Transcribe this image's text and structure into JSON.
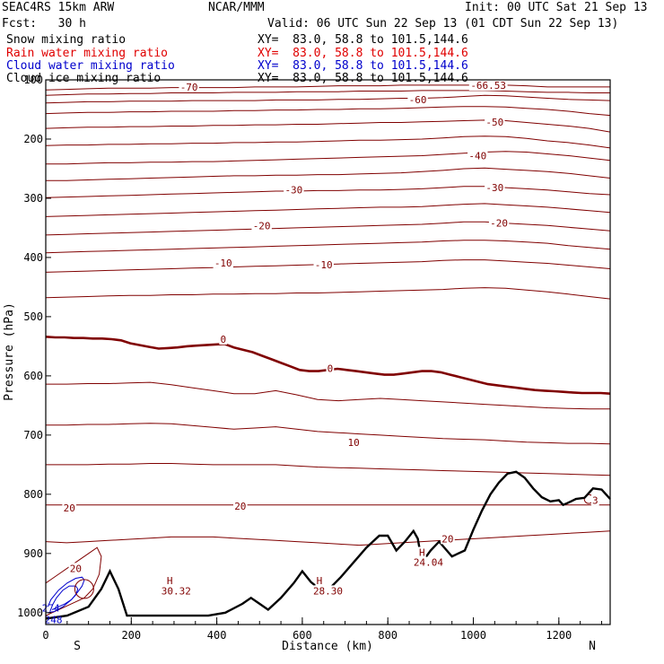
{
  "header": {
    "model": "SEAC4RS 15km ARW",
    "center": "NCAR/MMM",
    "init": "Init: 00 UTC Sat 21 Sep 13",
    "fcst": "Fcst:   30 h",
    "valid": "Valid: 06 UTC Sun 22 Sep 13 (01 CDT Sun 22 Sep 13)",
    "fields": [
      {
        "name": "Snow mixing ratio",
        "xy": "XY=  83.0, 58.8 to 101.5,144.6",
        "color": "#000000"
      },
      {
        "name": "Rain water mixing ratio",
        "xy": "XY=  83.0, 58.8 to 101.5,144.6",
        "color": "#e00000"
      },
      {
        "name": "Cloud water mixing ratio",
        "xy": "XY=  83.0, 58.8 to 101.5,144.6",
        "color": "#0000cc"
      },
      {
        "name": "Cloud ice mixing ratio",
        "xy": "XY=  83.0, 58.8 to 101.5,144.6",
        "color": "#000000"
      }
    ]
  },
  "chart_data": {
    "type": "line",
    "xlabel": "Distance (km)",
    "ylabel": "Pressure (hPa)",
    "xlim": [
      0,
      1320
    ],
    "ylim": [
      1020,
      100
    ],
    "y_scale": "linear, inverted",
    "x_ticks": [
      0,
      200,
      400,
      600,
      800,
      1000,
      1200
    ],
    "y_ticks": [
      200,
      300,
      400,
      500,
      600,
      700,
      800,
      900,
      1000
    ],
    "y_top_tick": "100",
    "x_end_labels": {
      "left": "S",
      "right": "N"
    },
    "contour_color": "#800000",
    "terrain_color": "#000000",
    "cloud_color": "#0000cc",
    "isotherms": [
      {
        "level": -70,
        "p": [
          117,
          116,
          115,
          114,
          114,
          114,
          113,
          113,
          113,
          113,
          112,
          112,
          112,
          111,
          110,
          110,
          110,
          109,
          109,
          109,
          109,
          109,
          109,
          110,
          112,
          112,
          112,
          112
        ]
      },
      {
        "level": -65,
        "p": [
          126,
          125,
          124,
          124,
          123,
          123,
          122,
          122,
          122,
          121,
          121,
          121,
          120,
          120,
          120,
          119,
          119,
          119,
          118,
          118,
          118,
          118,
          119,
          120,
          121,
          121,
          122,
          122
        ]
      },
      {
        "level": -60,
        "p": [
          139,
          138,
          137,
          137,
          136,
          136,
          136,
          135,
          135,
          135,
          135,
          134,
          134,
          134,
          133,
          133,
          132,
          131,
          131,
          130,
          128,
          126,
          127,
          129,
          131,
          133,
          134,
          135
        ]
      },
      {
        "level": -55,
        "p": [
          157,
          156,
          155,
          155,
          154,
          154,
          153,
          153,
          153,
          152,
          152,
          151,
          151,
          150,
          150,
          149,
          149,
          148,
          147,
          146,
          145,
          145,
          146,
          148,
          150,
          153,
          157,
          160
        ]
      },
      {
        "level": -50,
        "p": [
          182,
          181,
          180,
          180,
          179,
          179,
          178,
          178,
          177,
          177,
          176,
          176,
          175,
          175,
          174,
          173,
          172,
          172,
          171,
          170,
          169,
          168,
          169,
          172,
          175,
          178,
          182,
          188
        ]
      },
      {
        "level": -45,
        "p": [
          211,
          210,
          210,
          209,
          209,
          208,
          208,
          207,
          207,
          206,
          206,
          205,
          205,
          204,
          203,
          202,
          202,
          201,
          200,
          198,
          196,
          195,
          196,
          199,
          203,
          206,
          210,
          215
        ]
      },
      {
        "level": -40,
        "p": [
          242,
          242,
          241,
          240,
          240,
          239,
          239,
          238,
          238,
          237,
          236,
          235,
          234,
          233,
          232,
          231,
          230,
          229,
          228,
          226,
          224,
          222,
          221,
          222,
          225,
          228,
          232,
          236
        ]
      },
      {
        "level": -35,
        "p": [
          270,
          270,
          269,
          268,
          267,
          266,
          265,
          264,
          263,
          262,
          262,
          261,
          261,
          260,
          260,
          259,
          258,
          257,
          255,
          253,
          250,
          249,
          251,
          253,
          255,
          258,
          262,
          266
        ]
      },
      {
        "level": -30,
        "p": [
          299,
          298,
          297,
          296,
          295,
          294,
          293,
          292,
          291,
          290,
          289,
          288,
          288,
          287,
          287,
          286,
          286,
          285,
          284,
          282,
          280,
          280,
          282,
          284,
          286,
          289,
          292,
          294
        ]
      },
      {
        "level": -25,
        "p": [
          331,
          330,
          329,
          328,
          327,
          326,
          325,
          324,
          323,
          322,
          321,
          320,
          319,
          318,
          317,
          316,
          315,
          315,
          314,
          312,
          310,
          309,
          311,
          313,
          315,
          318,
          321,
          324
        ]
      },
      {
        "level": -20,
        "p": [
          362,
          361,
          360,
          359,
          358,
          357,
          356,
          355,
          354,
          353,
          352,
          351,
          350,
          349,
          348,
          347,
          346,
          345,
          344,
          342,
          340,
          340,
          342,
          344,
          346,
          349,
          352,
          355
        ]
      },
      {
        "level": -15,
        "p": [
          392,
          391,
          390,
          389,
          388,
          387,
          386,
          385,
          384,
          383,
          382,
          381,
          380,
          379,
          378,
          377,
          376,
          375,
          374,
          372,
          371,
          371,
          372,
          374,
          376,
          380,
          383,
          386
        ]
      },
      {
        "level": -10,
        "p": [
          425,
          424,
          423,
          422,
          421,
          420,
          419,
          418,
          417,
          416,
          415,
          414,
          413,
          412,
          411,
          410,
          409,
          408,
          407,
          405,
          404,
          404,
          406,
          408,
          410,
          413,
          416,
          419
        ]
      },
      {
        "level": -5,
        "p": [
          468,
          467,
          466,
          465,
          464,
          464,
          463,
          463,
          462,
          462,
          461,
          461,
          460,
          460,
          459,
          458,
          457,
          456,
          455,
          454,
          452,
          451,
          452,
          455,
          458,
          462,
          466,
          470
        ]
      },
      {
        "level": 5,
        "p": [
          614,
          614,
          613,
          613,
          612,
          611,
          615,
          620,
          625,
          630,
          630,
          625,
          632,
          640,
          642,
          640,
          638,
          640,
          642,
          644,
          646,
          648,
          650,
          652,
          654,
          655,
          656,
          656
        ]
      },
      {
        "level": 10,
        "p": [
          683,
          683,
          682,
          682,
          681,
          680,
          681,
          684,
          687,
          690,
          688,
          686,
          690,
          694,
          696,
          698,
          700,
          702,
          704,
          706,
          707,
          708,
          710,
          712,
          713,
          714,
          714,
          715
        ]
      },
      {
        "level": 15,
        "p": [
          750,
          750,
          750,
          749,
          749,
          748,
          748,
          749,
          750,
          750,
          750,
          750,
          752,
          754,
          755,
          756,
          757,
          758,
          759,
          760,
          761,
          762,
          763,
          764,
          765,
          766,
          767,
          768
        ]
      },
      {
        "level": 20,
        "p": [
          818,
          818,
          818,
          818,
          818,
          818,
          818,
          818,
          818,
          818,
          818,
          818,
          818,
          818,
          818,
          818,
          818,
          818,
          818,
          818,
          818,
          818,
          818,
          818,
          818,
          818,
          818,
          818
        ]
      },
      {
        "level": 25,
        "p": [
          880,
          882,
          880,
          878,
          876,
          874,
          872,
          872,
          872,
          874,
          876,
          878,
          880,
          882,
          884,
          886,
          884,
          882,
          880,
          878,
          876,
          874,
          872,
          870,
          868,
          866,
          864,
          862
        ]
      }
    ],
    "freezing_level": {
      "level": 0,
      "p": [
        534,
        535,
        535,
        536,
        536,
        537,
        537,
        538,
        540,
        545,
        548,
        551,
        554,
        553,
        552,
        550,
        549,
        548,
        547,
        546,
        552,
        556,
        560,
        566,
        572,
        578,
        584,
        590,
        592,
        592,
        590,
        588,
        590,
        592,
        594,
        596,
        598,
        598,
        596,
        594,
        592,
        592,
        594,
        598,
        602,
        606,
        610,
        614,
        616,
        618,
        620,
        622,
        624,
        625,
        626,
        627,
        628,
        629,
        629,
        629,
        630
      ]
    },
    "terrain": {
      "x": [
        0,
        50,
        100,
        130,
        150,
        170,
        190,
        220,
        260,
        300,
        340,
        380,
        420,
        460,
        480,
        500,
        520,
        550,
        580,
        600,
        620,
        640,
        660,
        690,
        720,
        750,
        780,
        800,
        820,
        840,
        860,
        870,
        880,
        900,
        920,
        950,
        980,
        1000,
        1020,
        1040,
        1060,
        1080,
        1100,
        1120,
        1140,
        1160,
        1180,
        1200,
        1210,
        1220,
        1240,
        1260,
        1280,
        1300,
        1320
      ],
      "p": [
        1010,
        1005,
        990,
        960,
        930,
        960,
        1005,
        1005,
        1005,
        1005,
        1005,
        1005,
        1000,
        985,
        975,
        985,
        995,
        975,
        950,
        930,
        948,
        960,
        962,
        940,
        915,
        890,
        870,
        870,
        895,
        880,
        862,
        875,
        915,
        895,
        880,
        905,
        895,
        860,
        828,
        800,
        780,
        765,
        762,
        772,
        790,
        805,
        812,
        810,
        818,
        815,
        808,
        806,
        790,
        792,
        808
      ]
    },
    "rain_region": {
      "x": [
        0,
        30,
        60,
        90,
        110,
        125,
        130,
        120,
        100,
        70,
        40,
        10,
        0
      ],
      "p": [
        1005,
        995,
        985,
        975,
        960,
        935,
        905,
        890,
        900,
        915,
        930,
        945,
        950
      ]
    },
    "cloud_contours": [
      {
        "x": [
          5,
          20,
          40,
          60,
          75,
          85,
          90,
          85,
          70,
          50,
          30,
          12,
          5
        ],
        "p": [
          1000,
          998,
          990,
          978,
          965,
          955,
          945,
          940,
          942,
          950,
          962,
          978,
          990
        ]
      },
      {
        "x": [
          15,
          30,
          45,
          60,
          70,
          75,
          70,
          55,
          40,
          25,
          15
        ],
        "p": [
          995,
          990,
          985,
          978,
          970,
          960,
          955,
          955,
          962,
          975,
          988
        ]
      }
    ],
    "cloud_circle": {
      "x": 90,
      "p": 960,
      "r_km": 22
    },
    "small_loop": {
      "x": 1270,
      "p": 808
    },
    "labels": [
      {
        "text": "-70",
        "x": 335,
        "p": 112
      },
      {
        "text": "-66.53",
        "x": 1035,
        "p": 109
      },
      {
        "text": "-60",
        "x": 870,
        "p": 133
      },
      {
        "text": "-50",
        "x": 1050,
        "p": 171
      },
      {
        "text": "-40",
        "x": 1010,
        "p": 228
      },
      {
        "text": "-30",
        "x": 580,
        "p": 286
      },
      {
        "text": "-30",
        "x": 1050,
        "p": 282
      },
      {
        "text": "-20",
        "x": 505,
        "p": 346
      },
      {
        "text": "-20",
        "x": 1060,
        "p": 342
      },
      {
        "text": "-10",
        "x": 415,
        "p": 409
      },
      {
        "text": "-10",
        "x": 650,
        "p": 412
      },
      {
        "text": "0",
        "x": 415,
        "p": 538
      },
      {
        "text": "0",
        "x": 665,
        "p": 587
      },
      {
        "text": "10",
        "x": 720,
        "p": 712
      },
      {
        "text": "20",
        "x": 55,
        "p": 823
      },
      {
        "text": "20",
        "x": 455,
        "p": 820
      },
      {
        "text": "20",
        "x": 70,
        "p": 925
      },
      {
        "text": "20",
        "x": 940,
        "p": 875
      },
      {
        "text": "H",
        "x": 290,
        "p": 946
      },
      {
        "text": "30.32",
        "x": 305,
        "p": 963
      },
      {
        "text": "H",
        "x": 640,
        "p": 946
      },
      {
        "text": "28.30",
        "x": 660,
        "p": 963
      },
      {
        "text": "H",
        "x": 880,
        "p": 898
      },
      {
        "text": "24.04",
        "x": 895,
        "p": 915
      },
      {
        "text": "3",
        "x": 1285,
        "p": 810
      },
      {
        "text": "274",
        "x": 12,
        "p": 992
      },
      {
        "text": "248",
        "x": 18,
        "p": 1012
      }
    ]
  }
}
